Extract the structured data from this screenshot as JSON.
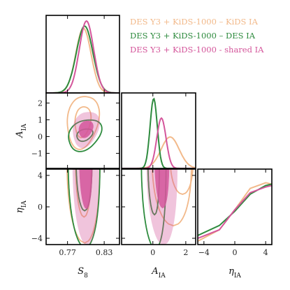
{
  "chart_data": {
    "type": "triangle-corner-plot",
    "parameters": [
      {
        "key": "S8",
        "label": "S",
        "sub": "8",
        "range": [
          0.735,
          0.855
        ],
        "ticks": [
          0.77,
          0.83
        ],
        "tick_labels": [
          "0.77",
          "0.83"
        ]
      },
      {
        "key": "A_IA",
        "label": "A",
        "sub": "IA",
        "range": [
          -1.9,
          2.6
        ],
        "ticks": [
          0,
          2
        ],
        "tick_labels": [
          "0",
          "2"
        ],
        "y_ticks": [
          -1,
          0,
          1,
          2
        ],
        "y_tick_labels": [
          "−1",
          "0",
          "1",
          "2"
        ]
      },
      {
        "key": "eta_IA",
        "label": "η",
        "sub": "IA",
        "range": [
          -4.8,
          4.8
        ],
        "ticks": [
          -4,
          0,
          4
        ],
        "tick_labels": [
          "−4",
          "0",
          "4"
        ],
        "y_ticks": [
          -4,
          0,
          4
        ],
        "y_tick_labels": [
          "−4",
          "0",
          "4"
        ]
      }
    ],
    "series": [
      {
        "name": "DES Y3 + KiDS-1000 – KiDS IA",
        "color": "#f2b98a",
        "style": "contour",
        "s8": {
          "mean": 0.796,
          "sd": 0.0125,
          "amp": 0.9
        },
        "aia": {
          "mean": 1.05,
          "sd": 0.55,
          "amp": 0.45
        },
        "eta_line": [
          [
            -4.8,
            -1.0
          ],
          [
            -2,
            -0.6
          ],
          [
            0,
            0.1
          ],
          [
            2,
            0.85
          ],
          [
            4,
            1.05
          ],
          [
            4.8,
            1.0
          ]
        ],
        "s8_aia": {
          "cx": 0.795,
          "cy": 0.9,
          "inner": [
            0.013,
            0.9
          ],
          "outer": [
            0.026,
            1.55
          ],
          "tilt": 0.3
        },
        "s8_eta": {
          "cx": 0.796,
          "cy": 2.2
        },
        "aia_eta": {
          "cx": 1.1,
          "cy": 2.0
        }
      },
      {
        "name": "DES Y3 + KiDS-1000 – DES IA",
        "color": "#2e8b3e",
        "style": "contour",
        "s8": {
          "mean": 0.798,
          "sd": 0.0135,
          "amp": 0.93
        },
        "aia": {
          "mean": 0.05,
          "sd": 0.22,
          "amp": 1.0
        },
        "eta_line": [
          [
            -4.8,
            -0.8
          ],
          [
            -2,
            -0.45
          ],
          [
            0,
            0.05
          ],
          [
            2,
            0.65
          ],
          [
            4,
            0.95
          ],
          [
            4.8,
            1.0
          ]
        ],
        "s8_aia": {
          "cx": 0.798,
          "cy": 0.1,
          "inner": [
            0.013,
            0.35
          ],
          "outer": [
            0.027,
            0.9
          ],
          "tilt": 0.5
        },
        "s8_eta": {
          "cx": 0.797,
          "cy": 2.0
        },
        "aia_eta": {
          "cx": 0.05,
          "cy": 1.0
        }
      },
      {
        "name": "DES Y3 + KiDS-1000 - shared IA",
        "color": "#d4569b",
        "style": "filled",
        "s8": {
          "mean": 0.801,
          "sd": 0.0118,
          "amp": 1.0
        },
        "aia": {
          "mean": 0.52,
          "sd": 0.28,
          "amp": 0.72
        },
        "eta_line": [
          [
            -4.8,
            -0.9
          ],
          [
            -2,
            -0.6
          ],
          [
            0,
            0.1
          ],
          [
            2,
            0.7
          ],
          [
            4,
            0.9
          ],
          [
            4.8,
            0.95
          ]
        ],
        "s8_aia": {
          "cx": 0.8,
          "cy": 0.45,
          "inner": [
            0.012,
            0.5
          ],
          "outer": [
            0.022,
            1.05
          ],
          "tilt": 0.4
        },
        "s8_eta": {
          "cx": 0.8,
          "cy": 2.4
        },
        "aia_eta": {
          "cx": 0.55,
          "cy": 2.2
        }
      }
    ],
    "legend": {
      "placement": "top-right"
    },
    "grid": false
  }
}
